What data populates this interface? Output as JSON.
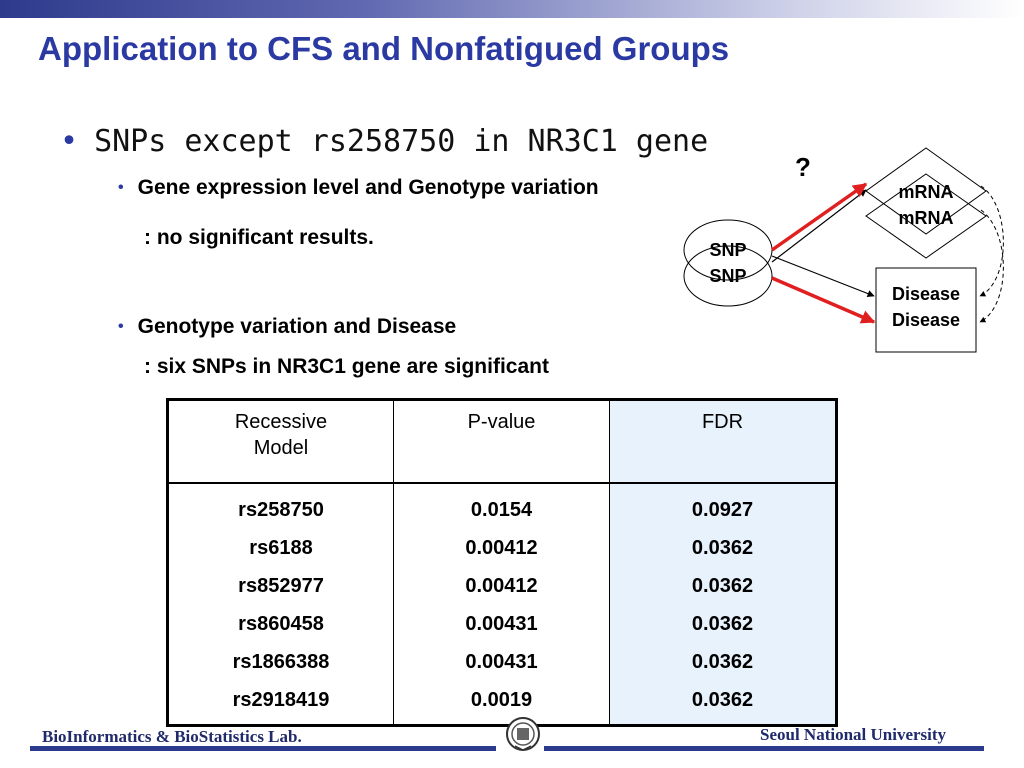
{
  "title": "Application to CFS and Nonfatigued Groups",
  "bullet_main": "SNPs except rs258750 in NR3C1 gene",
  "sub1": {
    "label": "Gene expression level and Genotype variation",
    "result": ": no significant results."
  },
  "sub2": {
    "label": "Genotype variation and Disease",
    "result": ": six SNPs in NR3C1 gene are significant"
  },
  "diagram": {
    "question": "?",
    "mrna": "mRNA",
    "snp": "SNP",
    "disease": "Disease",
    "highlight_color": "#e02020"
  },
  "table": {
    "headers": {
      "model_line1": "Recessive",
      "model_line2": "Model",
      "pvalue": "P-value",
      "fdr": "FDR"
    },
    "rows": [
      {
        "snp": "rs258750",
        "p": "0.0154",
        "fdr": "0.0927"
      },
      {
        "snp": "rs6188",
        "p": "0.00412",
        "fdr": "0.0362"
      },
      {
        "snp": "rs852977",
        "p": "0.00412",
        "fdr": "0.0362"
      },
      {
        "snp": "rs860458",
        "p": "0.00431",
        "fdr": "0.0362"
      },
      {
        "snp": "rs1866388",
        "p": "0.00431",
        "fdr": "0.0362"
      },
      {
        "snp": "rs2918419",
        "p": "0.0019",
        "fdr": "0.0362"
      }
    ]
  },
  "footer": {
    "left": "BioInformatics & BioStatistics Lab.",
    "right": "Seoul National University"
  }
}
